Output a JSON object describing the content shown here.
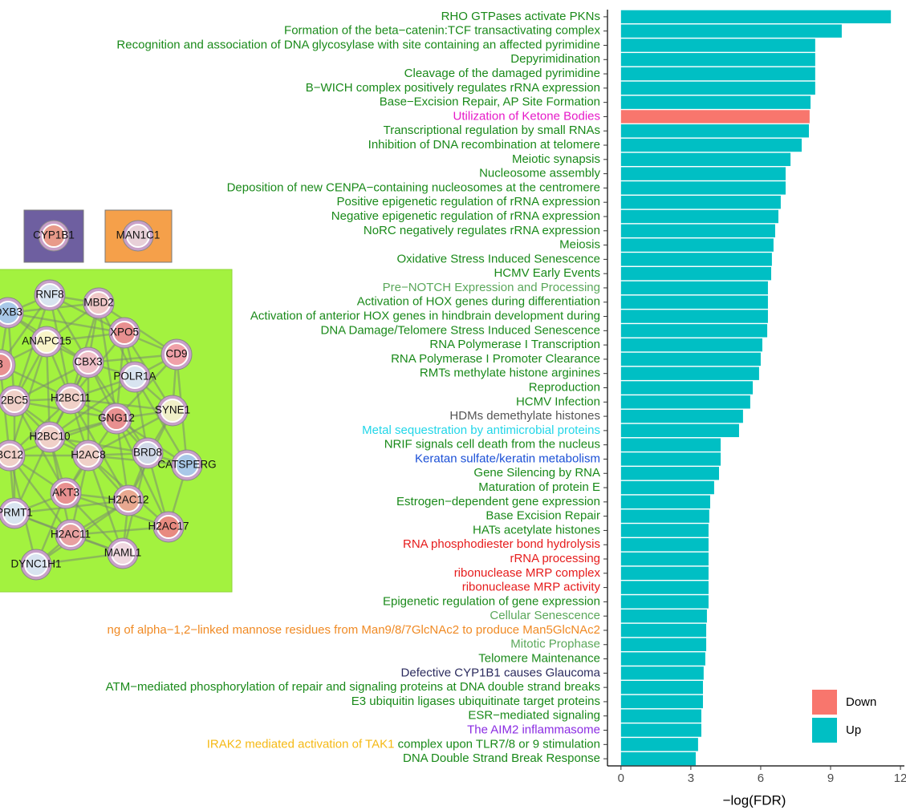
{
  "chart_data": {
    "type": "bar",
    "orientation": "horizontal",
    "xlabel": "−log(FDR)",
    "categories": [
      "RHO GTPases activate PKNs",
      "Formation of the beta−catenin:TCF transactivating complex",
      "Recognition and association of DNA glycosylase with site containing an affected pyrimidine",
      "Depyrimidination",
      "Cleavage of the damaged pyrimidine",
      "B−WICH complex positively regulates rRNA expression",
      "Base−Excision Repair, AP Site Formation",
      "Utilization of Ketone Bodies",
      "Transcriptional regulation by small RNAs",
      "Inhibition of DNA recombination at telomere",
      "Meiotic synapsis",
      "Nucleosome assembly",
      "Deposition of new CENPA−containing nucleosomes at the centromere",
      "Positive epigenetic regulation of rRNA expression",
      "Negative epigenetic regulation of rRNA expression",
      "NoRC negatively regulates rRNA expression",
      "Meiosis",
      "Oxidative Stress Induced Senescence",
      "HCMV Early Events",
      "Pre−NOTCH Expression and Processing",
      "Activation of HOX genes during differentiation",
      "Activation of anterior HOX genes in hindbrain development during",
      "DNA Damage/Telomere Stress Induced Senescence",
      "RNA Polymerase I Transcription",
      "RNA Polymerase I Promoter Clearance",
      "RMTs methylate histone arginines",
      "Reproduction",
      "HCMV Infection",
      "HDMs demethylate histones",
      "Metal sequestration by antimicrobial proteins",
      "NRIF signals cell death from the nucleus",
      "Keratan sulfate/keratin metabolism",
      "Gene Silencing by RNA",
      "Maturation of protein E",
      "Estrogen−dependent gene expression",
      "Base Excision Repair",
      "HATs acetylate histones",
      "RNA phosphodiester bond hydrolysis",
      "rRNA processing",
      "ribonuclease MRP complex",
      "ribonuclease MRP activity",
      "Epigenetic regulation of gene expression",
      "Cellular Senescence",
      "ng of alpha−1,2−linked mannose residues from Man9/8/7GlcNAc2 to produce Man5GlcNAc2",
      "Mitotic Prophase",
      "Telomere Maintenance",
      "Defective CYP1B1 causes Glaucoma",
      "ATM−mediated phosphorylation of repair and signaling proteins at DNA double strand breaks",
      "E3 ubiquitin ligases ubiquitinate target proteins",
      "ESR−mediated signaling",
      "The AIM2 inflammasome",
      [
        "IRAK2 mediated activation of TAK1",
        " complex upon TLR7/8 or 9 stimulation"
      ],
      "DNA Double Strand Break Response"
    ],
    "label_colors": [
      "#1a8a1a",
      "#1a8a1a",
      "#1a8a1a",
      "#1a8a1a",
      "#1a8a1a",
      "#1a8a1a",
      "#1a8a1a",
      "#e619c8",
      "#1a8a1a",
      "#1a8a1a",
      "#1a8a1a",
      "#1a8a1a",
      "#1a8a1a",
      "#1a8a1a",
      "#1a8a1a",
      "#1a8a1a",
      "#1a8a1a",
      "#1a8a1a",
      "#1a8a1a",
      "#5ba85b",
      "#1a8a1a",
      "#1a8a1a",
      "#1a8a1a",
      "#1a8a1a",
      "#1a8a1a",
      "#1a8a1a",
      "#1a8a1a",
      "#1a8a1a",
      "#555555",
      "#22d6e8",
      "#1a8a1a",
      "#1a4fd6",
      "#1a8a1a",
      "#1a8a1a",
      "#1a8a1a",
      "#1a8a1a",
      "#1a8a1a",
      "#e61c1c",
      "#e61c1c",
      "#e61c1c",
      "#e61c1c",
      "#1a8a1a",
      "#5ba85b",
      "#f08a24",
      "#5ba85b",
      "#1a8a1a",
      "#2b2b5e",
      "#1a8a1a",
      "#1a8a1a",
      "#1a8a1a",
      "#8a2be2",
      [
        "#f5b914",
        "#1a8a1a"
      ],
      "#1a8a1a"
    ],
    "series": [
      {
        "name": "Down",
        "color": "#f8766d",
        "values": [
          null,
          null,
          null,
          null,
          null,
          null,
          null,
          8.1,
          null,
          null,
          null,
          null,
          null,
          null,
          null,
          null,
          null,
          null,
          null,
          null,
          null,
          null,
          null,
          null,
          null,
          null,
          null,
          null,
          null,
          null,
          null,
          null,
          null,
          null,
          null,
          null,
          null,
          null,
          null,
          null,
          null,
          null,
          null,
          null,
          null,
          null,
          null,
          null,
          null,
          null,
          null,
          null,
          null
        ]
      },
      {
        "name": "Up",
        "color": "#00bfc4",
        "values": [
          11.59,
          9.48,
          8.34,
          8.34,
          8.34,
          8.34,
          8.14,
          null,
          8.07,
          7.76,
          7.28,
          7.07,
          7.07,
          6.86,
          6.76,
          6.62,
          6.55,
          6.48,
          6.45,
          6.31,
          6.31,
          6.31,
          6.28,
          6.07,
          6.0,
          5.93,
          5.66,
          5.55,
          5.24,
          5.07,
          4.28,
          4.28,
          4.21,
          4.0,
          3.83,
          3.79,
          3.76,
          3.76,
          3.76,
          3.76,
          3.76,
          3.76,
          3.69,
          3.66,
          3.66,
          3.62,
          3.55,
          3.52,
          3.52,
          3.45,
          3.45,
          3.31,
          3.21
        ]
      }
    ],
    "xlim": [
      -0.58,
      12.17
    ],
    "xticks": [
      0,
      3,
      6,
      9,
      12
    ],
    "legend": "bottom-right"
  },
  "network": {
    "clusters": [
      {
        "color": "#6e5fa0",
        "nodes": [
          {
            "label": "CYP1B1",
            "color": "#e89a8a"
          }
        ]
      },
      {
        "color": "#f5a04a",
        "nodes": [
          {
            "label": "MAN1C1",
            "color": "#e8d0d8"
          }
        ]
      },
      {
        "color": "#a3f23f",
        "nodes": [
          {
            "label": "RNF8",
            "color": "#d8e4f0"
          },
          {
            "label": "MBD2",
            "color": "#f0c8c8"
          },
          {
            "label": "OXB3",
            "color": "#a8c8e8"
          },
          {
            "label": "XPO5",
            "color": "#e89090"
          },
          {
            "label": "ANAPC15",
            "color": "#f8f4c8"
          },
          {
            "label": "CBX3",
            "color": "#f0c0c8"
          },
          {
            "label": "CD9",
            "color": "#f0a0a8"
          },
          {
            "label": "3",
            "color": "#e89090"
          },
          {
            "label": "POLR1A",
            "color": "#d8e4f0"
          },
          {
            "label": "2BC5",
            "color": "#f0d0c8"
          },
          {
            "label": "H2BC11",
            "color": "#f0d0c8"
          },
          {
            "label": "SYNE1",
            "color": "#f0f0c8"
          },
          {
            "label": "GNG12",
            "color": "#e89090"
          },
          {
            "label": "H2BC10",
            "color": "#f0d0c8"
          },
          {
            "label": "BRD8",
            "color": "#d0d8e8"
          },
          {
            "label": "BC12",
            "color": "#f0d0c8"
          },
          {
            "label": "H2AC8",
            "color": "#f0d0c8"
          },
          {
            "label": "CATSPERG",
            "color": "#a8c8e8"
          },
          {
            "label": "AKT3",
            "color": "#e89090"
          },
          {
            "label": "H2AC12",
            "color": "#e8a890"
          },
          {
            "label": "PRMT1",
            "color": "#d8e4f0"
          },
          {
            "label": "H2AC17",
            "color": "#e88a80"
          },
          {
            "label": "H2AC11",
            "color": "#e8a0a0"
          },
          {
            "label": "MAML1",
            "color": "#f0d8e0"
          },
          {
            "label": "DYNC1H1",
            "color": "#d8e4f0"
          }
        ]
      }
    ]
  }
}
